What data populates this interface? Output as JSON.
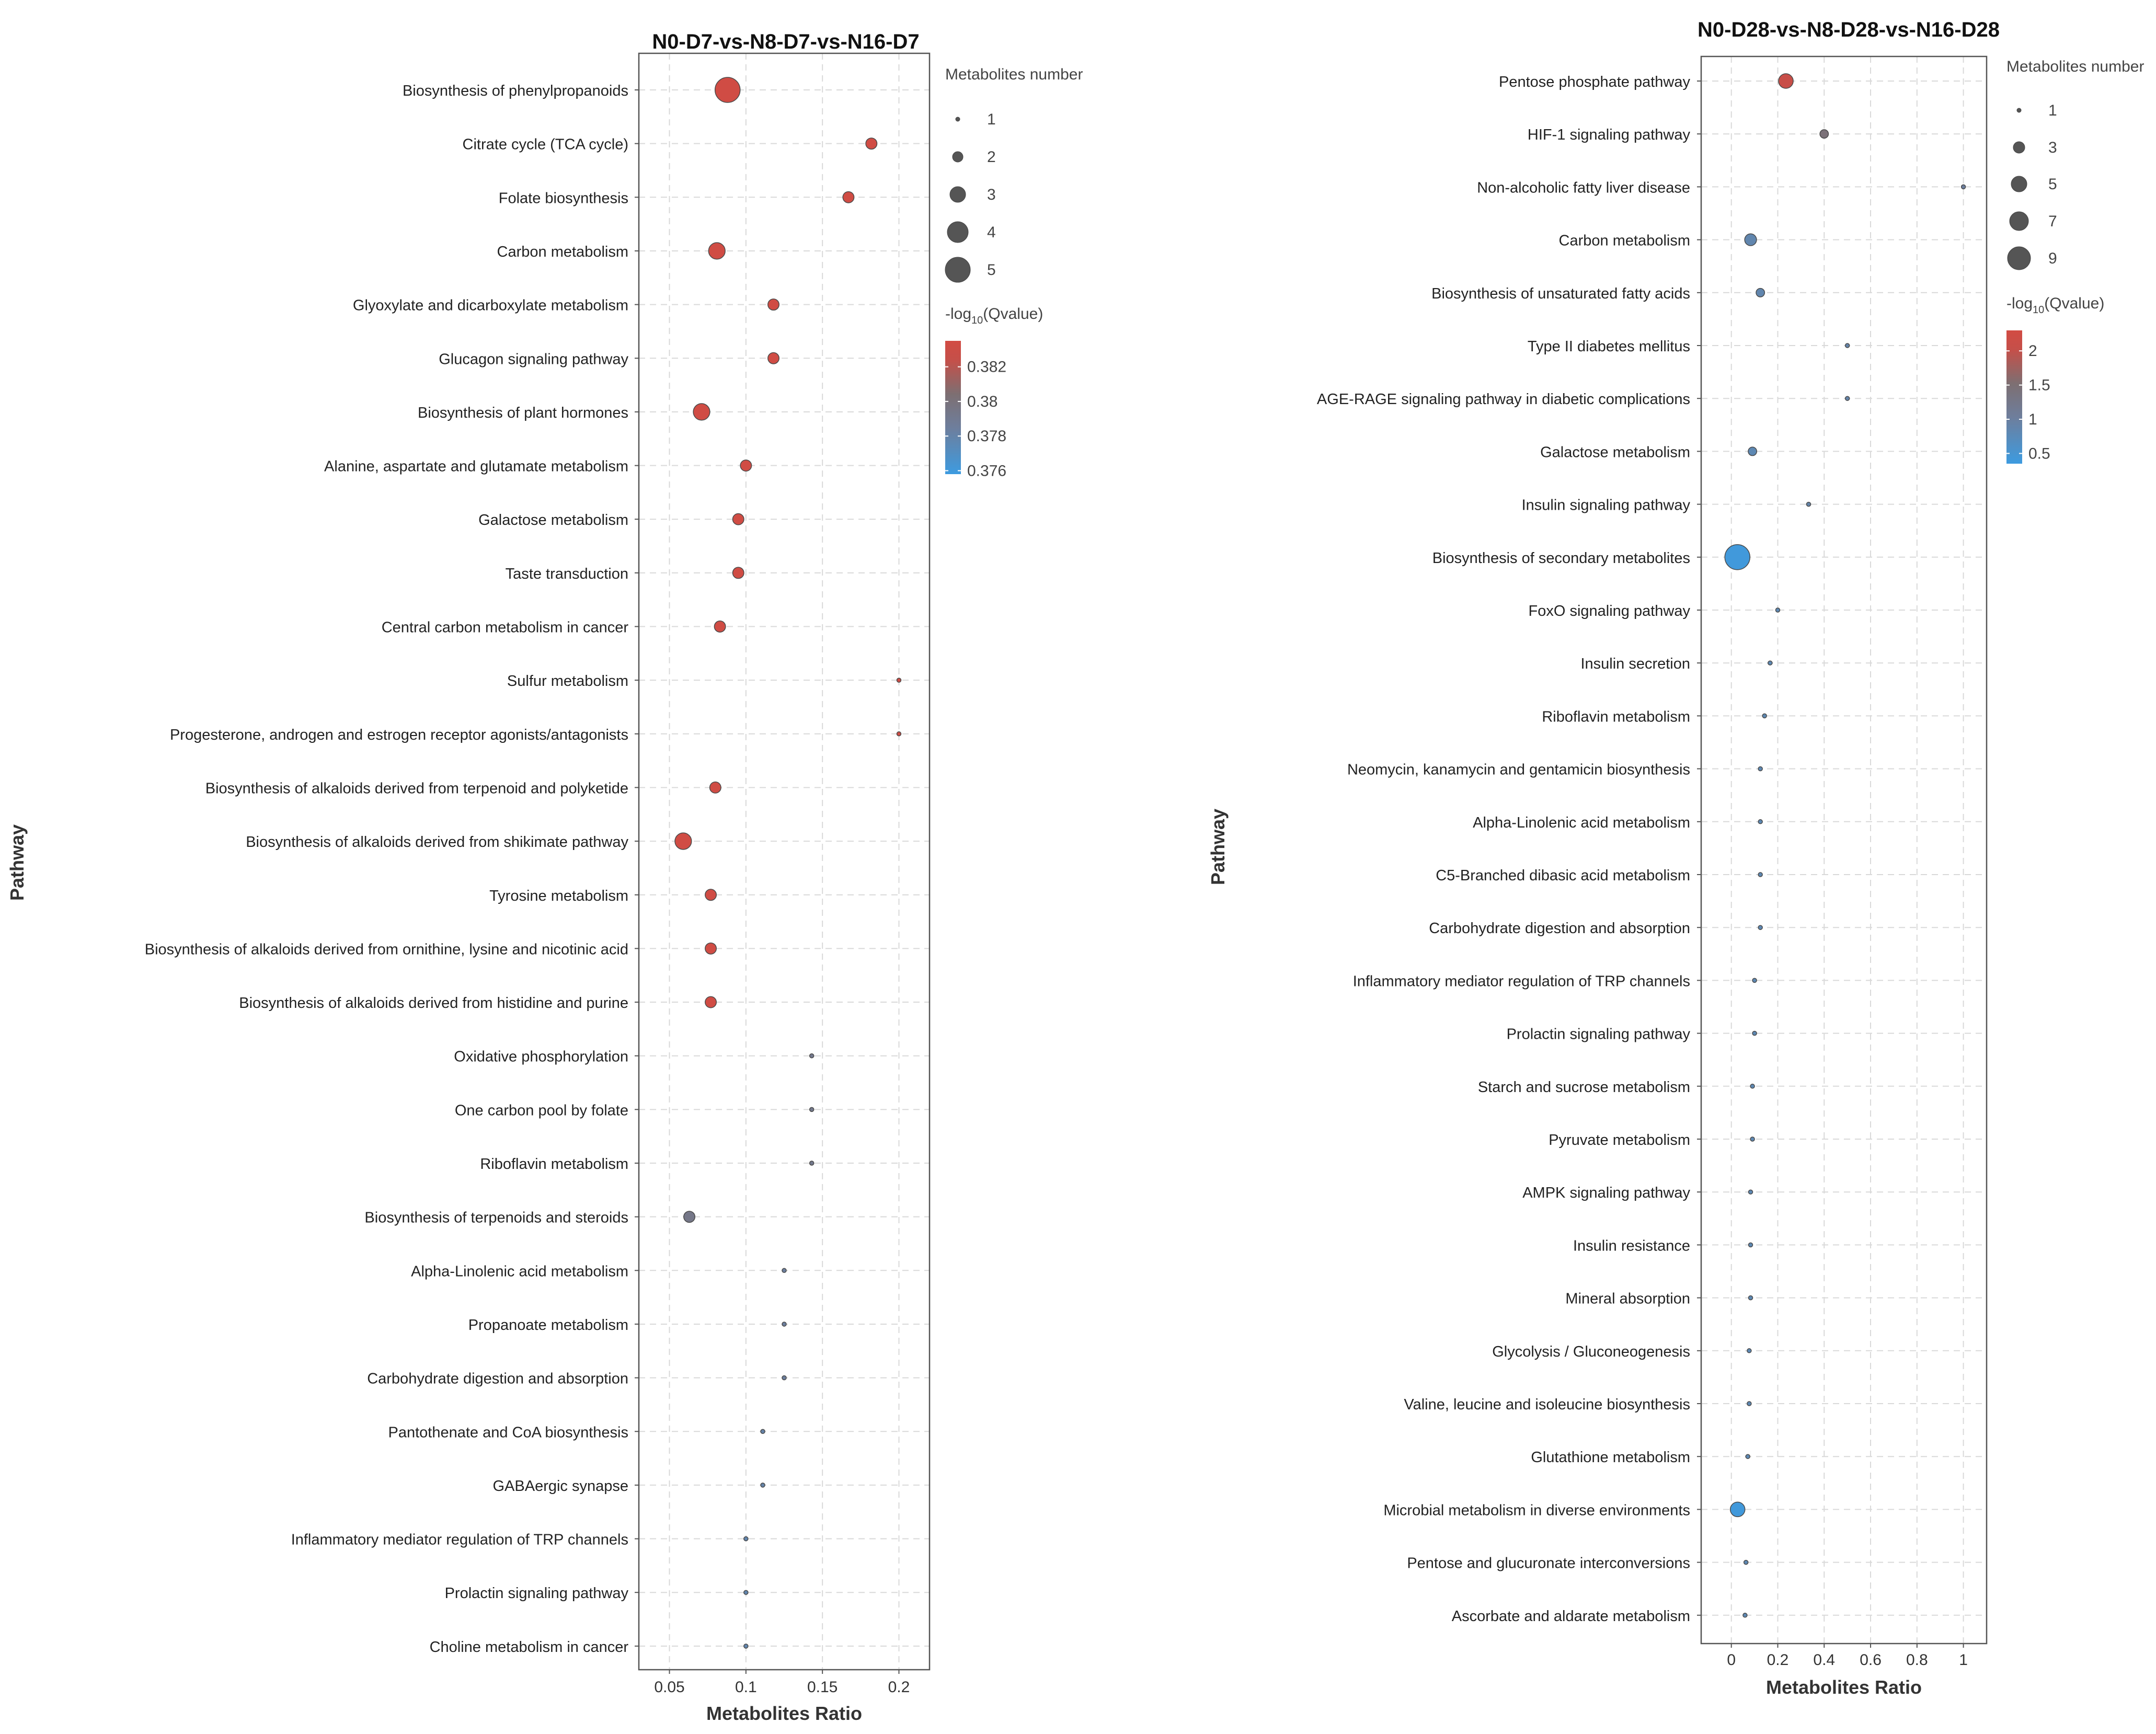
{
  "chart_data": [
    {
      "type": "scatter",
      "title": "N0-D7-vs-N8-D7-vs-N16-D7",
      "xlabel": "Metabolites Ratio",
      "ylabel": "Pathway",
      "xlim": [
        0.03,
        0.22
      ],
      "xticks": [
        0.05,
        0.1,
        0.15,
        0.2
      ],
      "xtick_labels": [
        "0.05",
        "0.1",
        "0.15",
        "0.2"
      ],
      "grid": true,
      "size_legend": {
        "title": "Metabolites number",
        "values": [
          1,
          2,
          3,
          4,
          5
        ],
        "labels": [
          "1",
          "2",
          "3",
          "4",
          "5"
        ]
      },
      "color_legend": {
        "title_main": "-log",
        "title_sub": "10",
        "title_rest": "(Qvalue)",
        "range": [
          0.3758,
          0.3835
        ],
        "ticks": [
          0.382,
          0.38,
          0.378,
          0.376
        ],
        "tick_labels": [
          "0.382",
          "0.38",
          "0.378",
          "0.376"
        ],
        "colors": [
          "#3d9be0",
          "#6e7e9c",
          "#7d6f72",
          "#c4504a",
          "#d24b43"
        ]
      },
      "categories": [
        "Biosynthesis of phenylpropanoids",
        "Citrate cycle (TCA cycle)",
        "Folate biosynthesis",
        "Carbon metabolism",
        "Glyoxylate and dicarboxylate metabolism",
        "Glucagon signaling pathway",
        "Biosynthesis of plant hormones",
        "Alanine, aspartate and glutamate metabolism",
        "Galactose metabolism",
        "Taste transduction",
        "Central carbon metabolism in cancer",
        "Sulfur metabolism",
        "Progesterone, androgen and estrogen receptor agonists/antagonists",
        "Biosynthesis of alkaloids derived from terpenoid and polyketide",
        "Biosynthesis of alkaloids derived from shikimate pathway",
        "Tyrosine metabolism",
        "Biosynthesis of alkaloids derived from ornithine, lysine and nicotinic acid",
        "Biosynthesis of alkaloids derived from histidine and purine",
        "Oxidative phosphorylation",
        "One carbon pool by folate",
        "Riboflavin metabolism",
        "Biosynthesis of terpenoids and steroids",
        "Alpha-Linolenic acid metabolism",
        "Propanoate metabolism",
        "Carbohydrate digestion and absorption",
        "Pantothenate and CoA biosynthesis",
        "GABAergic synapse",
        "Inflammatory mediator regulation of TRP channels",
        "Prolactin signaling pathway",
        "Choline metabolism in cancer"
      ],
      "x": [
        0.088,
        0.182,
        0.167,
        0.081,
        0.118,
        0.118,
        0.071,
        0.1,
        0.095,
        0.095,
        0.083,
        0.2,
        0.2,
        0.08,
        0.059,
        0.077,
        0.077,
        0.077,
        0.143,
        0.143,
        0.143,
        0.063,
        0.125,
        0.125,
        0.125,
        0.111,
        0.111,
        0.1,
        0.1,
        0.1
      ],
      "size": [
        5,
        2,
        2,
        3,
        2,
        2,
        3,
        2,
        2,
        2,
        2,
        1,
        1,
        2,
        3,
        2,
        2,
        2,
        1,
        1,
        1,
        2,
        1,
        1,
        1,
        1,
        1,
        1,
        1,
        1
      ],
      "qvalue": [
        0.3833,
        0.3833,
        0.3833,
        0.3833,
        0.3833,
        0.3833,
        0.3833,
        0.3833,
        0.3833,
        0.3833,
        0.3833,
        0.383,
        0.383,
        0.3833,
        0.3833,
        0.3833,
        0.3833,
        0.3833,
        0.3792,
        0.3792,
        0.3792,
        0.3794,
        0.3784,
        0.3784,
        0.3784,
        0.378,
        0.378,
        0.3778,
        0.3778,
        0.3778
      ]
    },
    {
      "type": "scatter",
      "title": "N0-D28-vs-N8-D28-vs-N16-D28",
      "xlabel": "Metabolites Ratio",
      "ylabel": "Pathway",
      "xlim": [
        -0.13,
        1.1
      ],
      "xticks": [
        0,
        0.2,
        0.4,
        0.6,
        0.8,
        1
      ],
      "xtick_labels": [
        "0",
        "0.2",
        "0.4",
        "0.6",
        "0.8",
        "1"
      ],
      "grid": true,
      "size_legend": {
        "title": "Metabolites number",
        "values": [
          1,
          3,
          5,
          7,
          9
        ],
        "labels": [
          "1",
          "3",
          "5",
          "7",
          "9"
        ]
      },
      "color_legend": {
        "title_main": "-log",
        "title_sub": "10",
        "title_rest": "(Qvalue)",
        "range": [
          0.35,
          2.3
        ],
        "ticks": [
          2,
          1.5,
          1,
          0.5
        ],
        "tick_labels": [
          "2",
          "1.5",
          "1",
          "0.5"
        ],
        "colors": [
          "#3d9be0",
          "#6e7e9c",
          "#7d6f72",
          "#c4504a",
          "#d24b43"
        ]
      },
      "categories": [
        "Pentose phosphate pathway",
        "HIF-1 signaling pathway",
        "Non-alcoholic fatty liver disease",
        "Carbon metabolism",
        "Biosynthesis of unsaturated fatty acids",
        "Type II diabetes mellitus",
        "AGE-RAGE signaling pathway in diabetic complications",
        "Galactose metabolism",
        "Insulin signaling pathway",
        "Biosynthesis of secondary metabolites",
        "FoxO signaling pathway",
        "Insulin secretion",
        "Riboflavin metabolism",
        "Neomycin, kanamycin and gentamicin biosynthesis",
        "Alpha-Linolenic acid metabolism",
        "C5-Branched dibasic acid metabolism",
        "Carbohydrate digestion and absorption",
        "Inflammatory mediator regulation of TRP channels",
        "Prolactin signaling pathway",
        "Starch and sucrose metabolism",
        "Pyruvate metabolism",
        "AMPK signaling pathway",
        "Insulin resistance",
        "Mineral absorption",
        "Glycolysis / Gluconeogenesis",
        "Valine, leucine and isoleucine biosynthesis",
        "Glutathione metabolism",
        "Microbial metabolism in diverse environments",
        "Pentose and glucuronate interconversions",
        "Ascorbate and aldarate metabolism"
      ],
      "x": [
        0.235,
        0.4,
        1.0,
        0.083,
        0.125,
        0.5,
        0.5,
        0.091,
        0.333,
        0.026,
        0.2,
        0.167,
        0.143,
        0.125,
        0.125,
        0.125,
        0.125,
        0.1,
        0.1,
        0.091,
        0.091,
        0.083,
        0.083,
        0.083,
        0.077,
        0.077,
        0.071,
        0.027,
        0.063,
        0.059
      ],
      "size": [
        4,
        2,
        1,
        3,
        2,
        1,
        1,
        2,
        1,
        9,
        1,
        1,
        1,
        1,
        1,
        1,
        1,
        1,
        1,
        1,
        1,
        1,
        1,
        1,
        1,
        1,
        1,
        4,
        1,
        1
      ],
      "qvalue": [
        2.1,
        1.45,
        1.0,
        0.85,
        0.85,
        0.9,
        0.9,
        0.8,
        0.9,
        0.4,
        0.8,
        0.8,
        0.8,
        0.8,
        0.8,
        0.8,
        0.8,
        0.8,
        0.8,
        0.8,
        0.8,
        0.8,
        0.8,
        0.8,
        0.8,
        0.8,
        0.8,
        0.4,
        0.8,
        0.8
      ]
    }
  ]
}
